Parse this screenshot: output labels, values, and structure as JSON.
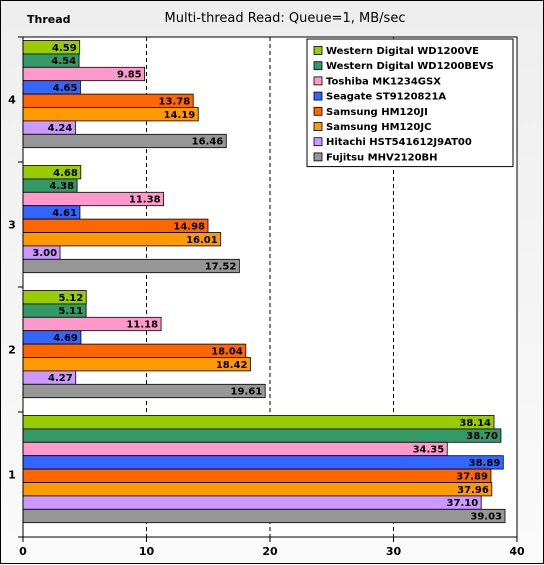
{
  "chart_data": {
    "type": "bar",
    "orientation": "horizontal",
    "title": "Multi-thread Read: Queue=1, MB/sec",
    "ylabel": "Thread",
    "xlabel": "",
    "xlim": [
      0,
      40
    ],
    "xticks": [
      0,
      10,
      20,
      30,
      40
    ],
    "grid": "vertical dashed",
    "legend_position": "top-right",
    "categories": [
      "4",
      "3",
      "2",
      "1"
    ],
    "series": [
      {
        "name": "Western Digital WD1200VE",
        "color": "#99cc00",
        "values": [
          4.59,
          4.68,
          5.12,
          38.14
        ]
      },
      {
        "name": "Western Digital WD1200BEVS",
        "color": "#339966",
        "values": [
          4.54,
          4.38,
          5.11,
          38.7
        ]
      },
      {
        "name": "Toshiba MK1234GSX",
        "color": "#ff99cc",
        "values": [
          9.85,
          11.38,
          11.18,
          34.35
        ]
      },
      {
        "name": "Seagate ST9120821A",
        "color": "#3366ff",
        "values": [
          4.65,
          4.61,
          4.69,
          38.89
        ]
      },
      {
        "name": "Samsung HM120JI",
        "color": "#ff6600",
        "values": [
          13.78,
          14.98,
          18.04,
          37.89
        ]
      },
      {
        "name": "Samsung HM120JC",
        "color": "#ff9900",
        "values": [
          14.19,
          16.01,
          18.42,
          37.96
        ]
      },
      {
        "name": "Hitachi HST541612J9AT00",
        "color": "#cc99ff",
        "values": [
          4.24,
          3.0,
          4.27,
          37.1
        ]
      },
      {
        "name": "Fujitsu MHV2120BH",
        "color": "#969696",
        "values": [
          16.46,
          17.52,
          19.61,
          39.03
        ]
      }
    ],
    "value_labels": [
      [
        "4.59",
        "4.68",
        "5.12",
        "38.14"
      ],
      [
        "4.54",
        "4.38",
        "5.11",
        "38.70"
      ],
      [
        "9.85",
        "11.38",
        "11.18",
        "34.35"
      ],
      [
        "4.65",
        "4.61",
        "4.69",
        "38.89"
      ],
      [
        "13.78",
        "14.98",
        "18.04",
        "37.89"
      ],
      [
        "14.19",
        "16.01",
        "18.42",
        "37.96"
      ],
      [
        "4.24",
        "3.00",
        "4.27",
        "37.10"
      ],
      [
        "16.46",
        "17.52",
        "19.61",
        "39.03"
      ]
    ]
  }
}
